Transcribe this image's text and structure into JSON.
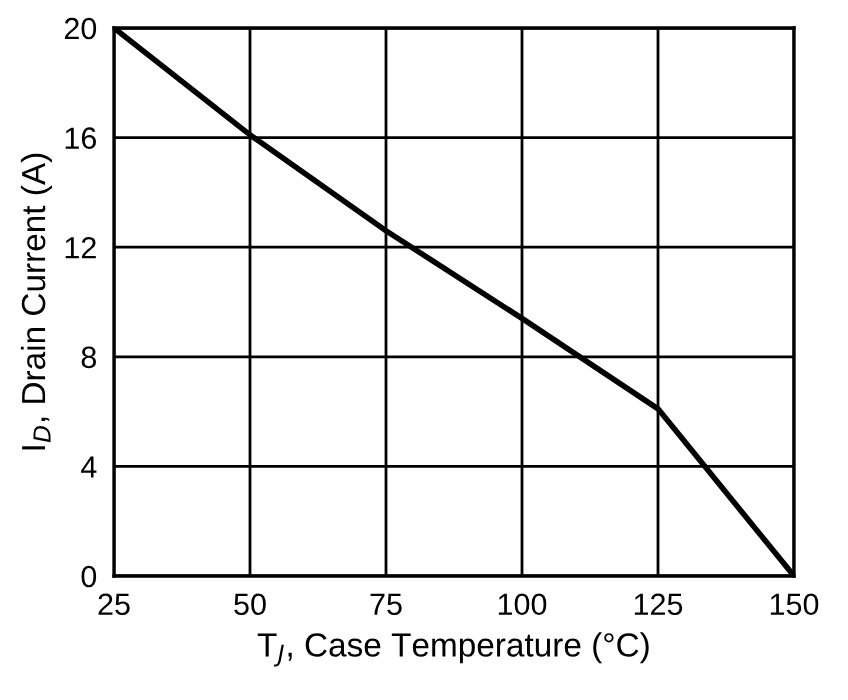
{
  "chart_data": {
    "type": "line",
    "xlabel": "T$_{J}$, Case Temperature (°C)",
    "ylabel": "I$_{D}$, Drain Current (A)",
    "x": [
      25,
      50,
      75,
      100,
      125,
      150
    ],
    "series": [
      {
        "color": "#000000",
        "values": [
          20,
          16.1,
          12.6,
          9.4,
          6.1,
          0
        ]
      }
    ],
    "xlim": [
      25,
      150
    ],
    "ylim": [
      0,
      20
    ],
    "xticks": [
      25,
      50,
      75,
      100,
      125,
      150
    ],
    "yticks": [
      0,
      4,
      8,
      12,
      16,
      20
    ],
    "grid": true,
    "marker": "none",
    "line_style": "solid"
  }
}
